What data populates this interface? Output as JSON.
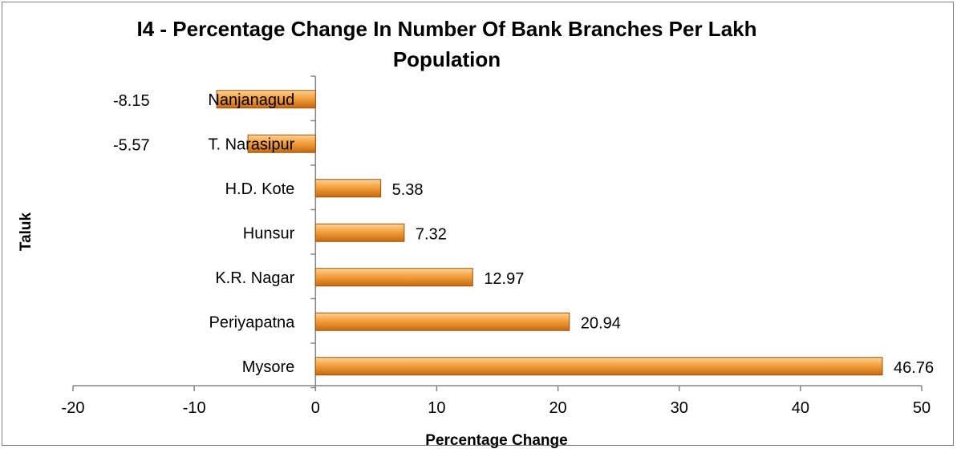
{
  "chart_data": {
    "type": "bar",
    "orientation": "horizontal",
    "title_lines": [
      "I4 - Percentage Change In Number Of Bank Branches Per Lakh",
      "Population"
    ],
    "xlabel": "Percentage Change",
    "ylabel": "Taluk",
    "categories": [
      "Nanjanagud",
      "T. Narasipur",
      "H.D. Kote",
      "Hunsur",
      "K.R. Nagar",
      "Periyapatna",
      "Mysore"
    ],
    "values": [
      -8.15,
      -5.57,
      5.38,
      7.32,
      12.97,
      20.94,
      46.76
    ],
    "value_labels": [
      "-8.15",
      "-5.57",
      "5.38",
      "7.32",
      "12.97",
      "20.94",
      "46.76"
    ],
    "xlim": [
      -20,
      50
    ],
    "x_ticks": [
      -20,
      -10,
      0,
      10,
      20,
      30,
      40,
      50
    ],
    "x_tick_labels": [
      "-20",
      "-10",
      "0",
      "10",
      "20",
      "30",
      "40",
      "50"
    ],
    "grid": false,
    "legend": "none",
    "colors": {
      "bar_light": "#fbd49a",
      "bar_mid": "#f5a03c",
      "bar_dark": "#c46a12",
      "bar_edge": "#a0520b",
      "axis": "#868686",
      "frame": "#7f7f7f"
    }
  }
}
